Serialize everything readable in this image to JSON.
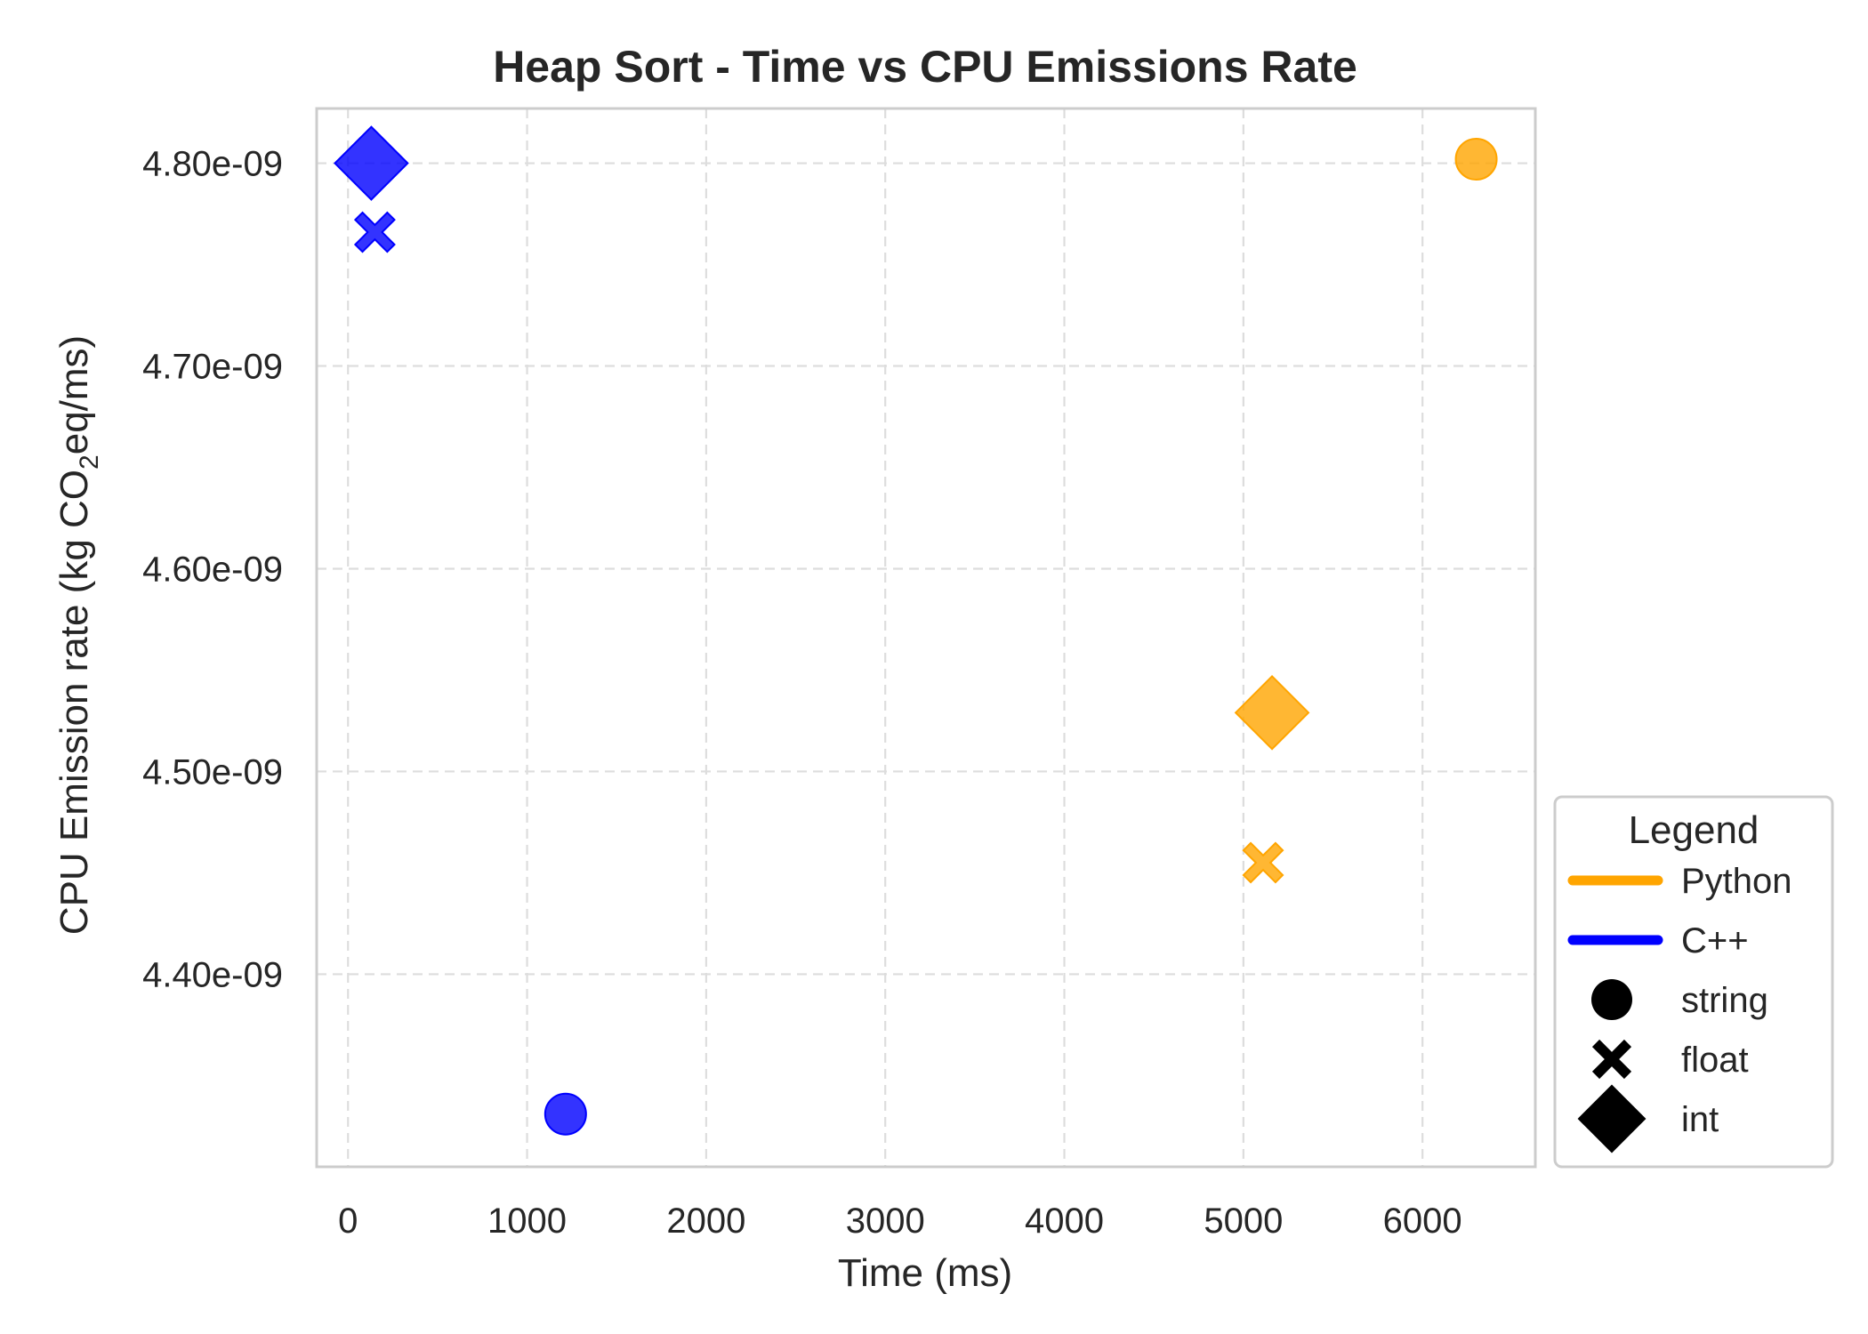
{
  "chart_data": {
    "type": "scatter",
    "title": "Heap Sort - Time vs CPU Emissions Rate",
    "xlabel": "Time (ms)",
    "ylabel_parts": [
      "CPU Emission rate (kg CO",
      "2",
      "eq/ms)"
    ],
    "xlim": [
      -175,
      6630
    ],
    "ylim": [
      4.305e-09,
      4.827e-09
    ],
    "x_ticks": [
      0,
      1000,
      2000,
      3000,
      4000,
      5000,
      6000
    ],
    "x_tick_labels": [
      "0",
      "1000",
      "2000",
      "3000",
      "4000",
      "5000",
      "6000"
    ],
    "y_ticks": [
      4.4e-09,
      4.5e-09,
      4.6e-09,
      4.7e-09,
      4.8e-09
    ],
    "y_tick_labels": [
      "4.40e-09",
      "4.50e-09",
      "4.60e-09",
      "4.70e-09",
      "4.80e-09"
    ],
    "grid": true,
    "series": [
      {
        "name": "Python",
        "color": "#FFA500",
        "points": [
          {
            "type": "string",
            "x": 6300,
            "y": 4.802e-09
          },
          {
            "type": "float",
            "x": 5110,
            "y": 4.455e-09
          },
          {
            "type": "int",
            "x": 5160,
            "y": 4.529e-09
          }
        ]
      },
      {
        "name": "C++",
        "color": "#0000FF",
        "points": [
          {
            "type": "string",
            "x": 1215,
            "y": 4.331e-09
          },
          {
            "type": "float",
            "x": 150,
            "y": 4.766e-09
          },
          {
            "type": "int",
            "x": 130,
            "y": 4.8e-09
          }
        ]
      }
    ],
    "marker_types": [
      {
        "name": "string",
        "marker": "circle"
      },
      {
        "name": "float",
        "marker": "x-cross"
      },
      {
        "name": "int",
        "marker": "diamond"
      }
    ],
    "legend": {
      "title": "Legend",
      "placement": "outside-right-bottom"
    }
  }
}
